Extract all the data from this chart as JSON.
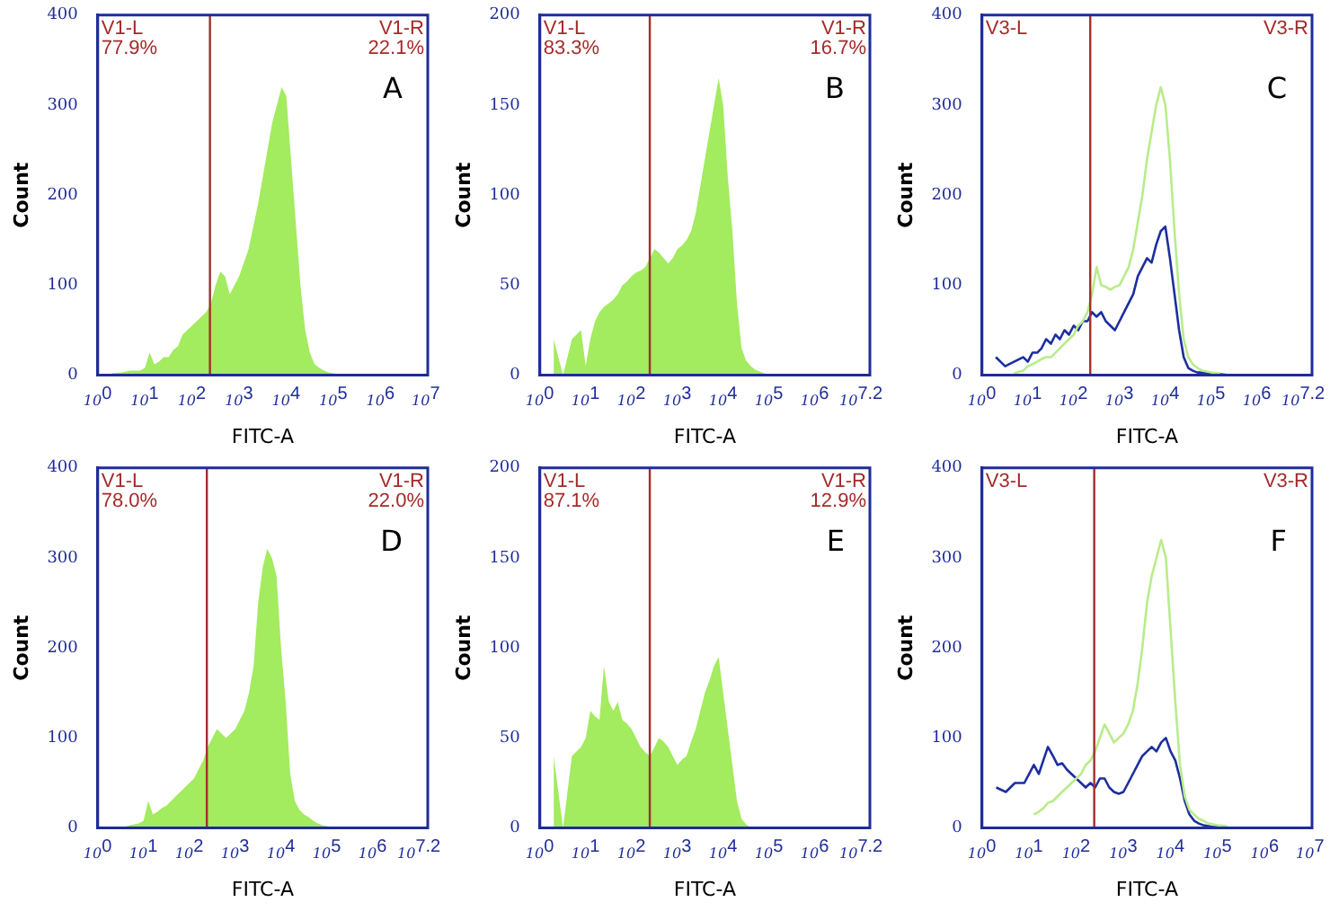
{
  "chart_data": [
    {
      "type": "area",
      "title": "A",
      "xlabel": "FITC-A",
      "ylabel": "Count",
      "log": "x",
      "grid": false,
      "legend": false,
      "annotations": [
        "V1-L",
        "V1-R",
        "77.9%",
        "22.1%"
      ],
      "ref_lines": [
        {
          "axis": "x",
          "value": 240,
          "color": "#a0302a"
        }
      ],
      "xlim": [
        1,
        10000000
      ],
      "xticks": [
        {
          "value": 1,
          "label": "10$^{0}$"
        },
        {
          "value": 10,
          "label": "10$^{1}$"
        },
        {
          "value": 100,
          "label": "10$^{2}$"
        },
        {
          "value": 1000,
          "label": "10$^{3}$"
        },
        {
          "value": 10000,
          "label": "10$^{4}$"
        },
        {
          "value": 100000,
          "label": "10$^{5}$"
        },
        {
          "value": 1000000,
          "label": "10$^{6}$"
        },
        {
          "value": 10000000,
          "label": "10$^{7}$"
        }
      ],
      "ylim": [
        0,
        400
      ],
      "yticks": [
        0,
        100,
        200,
        300,
        400
      ],
      "x": [
        2,
        3.2,
        5,
        7.9,
        10,
        12.6,
        16,
        20,
        25,
        32,
        40,
        50,
        63,
        79,
        100,
        126,
        158,
        200,
        251,
        316,
        398,
        501,
        631,
        794,
        1000,
        1259,
        1585,
        1995,
        2512,
        3162,
        3981,
        5012,
        6310,
        7943,
        10000,
        12589,
        15849,
        19953,
        25119,
        31623,
        39811,
        50119,
        63096,
        79433,
        100000,
        158489,
        251189,
        398107
      ],
      "color": "#a3eb5f",
      "values": [
        2,
        3,
        5,
        5,
        8,
        25,
        12,
        15,
        20,
        20,
        28,
        32,
        45,
        50,
        55,
        60,
        65,
        70,
        80,
        100,
        115,
        110,
        90,
        100,
        110,
        125,
        140,
        165,
        190,
        220,
        250,
        280,
        300,
        320,
        310,
        240,
        170,
        100,
        50,
        25,
        12,
        8,
        5,
        3,
        2,
        0,
        0,
        0
      ]
    },
    {
      "type": "area",
      "title": "B",
      "xlabel": "FITC-A",
      "ylabel": "Count",
      "log": "x",
      "grid": false,
      "legend": false,
      "annotations": [
        "V1-L",
        "V1-R",
        "83.3%",
        "16.7%"
      ],
      "ref_lines": [
        {
          "axis": "x",
          "value": 250,
          "color": "#a0302a"
        }
      ],
      "xlim": [
        1,
        15848932
      ],
      "xticks": [
        {
          "value": 1,
          "label": "10$^{0}$"
        },
        {
          "value": 10,
          "label": "10$^{1}$"
        },
        {
          "value": 100,
          "label": "10$^{2}$"
        },
        {
          "value": 1000,
          "label": "10$^{3}$"
        },
        {
          "value": 10000,
          "label": "10$^{4}$"
        },
        {
          "value": 100000,
          "label": "10$^{5}$"
        },
        {
          "value": 1000000,
          "label": "10$^{6}$"
        },
        {
          "value": 15848932,
          "label": "10$^{7.2}$"
        }
      ],
      "ylim": [
        0,
        200
      ],
      "yticks": [
        0,
        50,
        100,
        150,
        200
      ],
      "x": [
        2,
        3.2,
        5,
        7.9,
        10,
        12.6,
        16,
        20,
        25,
        32,
        40,
        50,
        63,
        79,
        100,
        126,
        158,
        200,
        251,
        316,
        398,
        501,
        631,
        794,
        1000,
        1259,
        1585,
        1995,
        2512,
        3162,
        3981,
        5012,
        6310,
        7943,
        10000,
        12589,
        15849,
        19953,
        25119,
        31623,
        39811,
        50119,
        63096,
        79433,
        100000,
        158489,
        251189,
        398107
      ],
      "color": "#a3eb5f",
      "values": [
        20,
        0,
        20,
        25,
        5,
        20,
        30,
        35,
        38,
        40,
        42,
        45,
        50,
        52,
        55,
        57,
        58,
        60,
        65,
        70,
        68,
        65,
        62,
        65,
        70,
        72,
        75,
        80,
        90,
        105,
        120,
        135,
        150,
        165,
        150,
        110,
        80,
        40,
        15,
        8,
        5,
        3,
        2,
        1,
        0,
        0,
        0,
        0
      ]
    },
    {
      "type": "line",
      "title": "C",
      "xlabel": "FITC-A",
      "ylabel": "Count",
      "log": "x",
      "grid": false,
      "legend": false,
      "annotations": [
        "V3-L",
        "V3-R"
      ],
      "ref_lines": [
        {
          "axis": "x",
          "value": 230,
          "color": "#a0302a"
        }
      ],
      "xlim": [
        1,
        15848932
      ],
      "xticks": [
        {
          "value": 1,
          "label": "10$^{0}$"
        },
        {
          "value": 10,
          "label": "10$^{1}$"
        },
        {
          "value": 100,
          "label": "10$^{2}$"
        },
        {
          "value": 1000,
          "label": "10$^{3}$"
        },
        {
          "value": 10000,
          "label": "10$^{4}$"
        },
        {
          "value": 100000,
          "label": "10$^{5}$"
        },
        {
          "value": 1000000,
          "label": "10$^{6}$"
        },
        {
          "value": 15848932,
          "label": "10$^{7.2}$"
        }
      ],
      "ylim": [
        0,
        400
      ],
      "yticks": [
        0,
        100,
        200,
        300,
        400
      ],
      "x": [
        2,
        3.2,
        5,
        7.9,
        10,
        12.6,
        16,
        20,
        25,
        32,
        40,
        50,
        63,
        79,
        100,
        126,
        158,
        200,
        251,
        316,
        398,
        501,
        631,
        794,
        1000,
        1259,
        1585,
        1995,
        2512,
        3162,
        3981,
        5012,
        6310,
        7943,
        10000,
        12589,
        15849,
        19953,
        25119,
        31623,
        39811,
        50119,
        63096,
        79433,
        100000,
        158489,
        251189,
        398107
      ],
      "series": [
        {
          "color": "#b8ec8a",
          "values": [
            null,
            null,
            2,
            5,
            10,
            12,
            15,
            18,
            20,
            20,
            25,
            30,
            35,
            40,
            45,
            55,
            60,
            70,
            90,
            120,
            100,
            98,
            95,
            98,
            100,
            110,
            120,
            140,
            170,
            200,
            240,
            270,
            300,
            320,
            300,
            240,
            160,
            90,
            40,
            20,
            12,
            8,
            5,
            4,
            3,
            2,
            null,
            null
          ]
        },
        {
          "color": "#1c2ea0",
          "values": [
            20,
            10,
            15,
            20,
            15,
            25,
            25,
            30,
            40,
            35,
            45,
            40,
            50,
            45,
            55,
            50,
            60,
            60,
            70,
            65,
            70,
            60,
            55,
            50,
            60,
            70,
            80,
            90,
            110,
            120,
            130,
            125,
            145,
            160,
            165,
            130,
            90,
            50,
            20,
            8,
            5,
            3,
            3,
            2,
            2,
            1,
            0,
            0
          ]
        }
      ]
    },
    {
      "type": "area",
      "title": "D",
      "xlabel": "FITC-A",
      "ylabel": "Count",
      "log": "x",
      "grid": false,
      "legend": false,
      "annotations": [
        "V1-L",
        "V1-R",
        "78.0%",
        "22.0%"
      ],
      "ref_lines": [
        {
          "axis": "x",
          "value": 240,
          "color": "#a0302a"
        }
      ],
      "xlim": [
        1,
        15848932
      ],
      "xticks": [
        {
          "value": 1,
          "label": "10$^{0}$"
        },
        {
          "value": 10,
          "label": "10$^{1}$"
        },
        {
          "value": 100,
          "label": "10$^{2}$"
        },
        {
          "value": 1000,
          "label": "10$^{3}$"
        },
        {
          "value": 10000,
          "label": "10$^{4}$"
        },
        {
          "value": 100000,
          "label": "10$^{5}$"
        },
        {
          "value": 1000000,
          "label": "10$^{6}$"
        },
        {
          "value": 15848932,
          "label": "10$^{7.2}$"
        }
      ],
      "ylim": [
        0,
        400
      ],
      "yticks": [
        0,
        100,
        200,
        300,
        400
      ],
      "x": [
        2,
        3.2,
        5,
        7.9,
        10,
        12.6,
        16,
        20,
        25,
        32,
        40,
        50,
        63,
        79,
        100,
        126,
        158,
        200,
        251,
        316,
        398,
        501,
        631,
        794,
        1000,
        1259,
        1585,
        1995,
        2512,
        3162,
        3981,
        5012,
        6310,
        7943,
        10000,
        12589,
        15849,
        19953,
        25119,
        31623,
        39811,
        50119,
        63096,
        79433,
        100000,
        158489,
        251189,
        398107
      ],
      "color": "#a3eb5f",
      "values": [
        0,
        0,
        3,
        5,
        8,
        30,
        15,
        18,
        22,
        25,
        30,
        35,
        40,
        45,
        50,
        55,
        65,
        75,
        90,
        100,
        110,
        105,
        100,
        105,
        110,
        120,
        130,
        150,
        180,
        250,
        290,
        310,
        300,
        280,
        200,
        140,
        60,
        30,
        20,
        15,
        12,
        8,
        5,
        3,
        2,
        0,
        0,
        0
      ]
    },
    {
      "type": "area",
      "title": "E",
      "xlabel": "FITC-A",
      "ylabel": "Count",
      "log": "x",
      "grid": false,
      "legend": false,
      "annotations": [
        "V1-L",
        "V1-R",
        "87.1%",
        "12.9%"
      ],
      "ref_lines": [
        {
          "axis": "x",
          "value": 250,
          "color": "#a0302a"
        }
      ],
      "xlim": [
        1,
        15848932
      ],
      "xticks": [
        {
          "value": 1,
          "label": "10$^{0}$"
        },
        {
          "value": 10,
          "label": "10$^{1}$"
        },
        {
          "value": 100,
          "label": "10$^{2}$"
        },
        {
          "value": 1000,
          "label": "10$^{3}$"
        },
        {
          "value": 10000,
          "label": "10$^{4}$"
        },
        {
          "value": 100000,
          "label": "10$^{5}$"
        },
        {
          "value": 1000000,
          "label": "10$^{6}$"
        },
        {
          "value": 15848932,
          "label": "10$^{7.2}$"
        }
      ],
      "ylim": [
        0,
        200
      ],
      "yticks": [
        0,
        50,
        100,
        150,
        200
      ],
      "x": [
        2,
        3.2,
        5,
        7.9,
        10,
        12.6,
        16,
        20,
        25,
        32,
        40,
        50,
        63,
        79,
        100,
        126,
        158,
        200,
        251,
        316,
        398,
        501,
        631,
        794,
        1000,
        1259,
        1585,
        1995,
        2512,
        3162,
        3981,
        5012,
        6310,
        7943,
        10000,
        12589,
        15849,
        19953,
        25119,
        31623,
        39811,
        50119,
        63096,
        79433,
        100000,
        158489,
        251189,
        398107
      ],
      "color": "#a3eb5f",
      "values": [
        40,
        0,
        40,
        45,
        50,
        65,
        62,
        60,
        90,
        70,
        65,
        70,
        60,
        58,
        55,
        50,
        45,
        42,
        40,
        45,
        50,
        48,
        45,
        40,
        35,
        38,
        40,
        48,
        55,
        65,
        75,
        82,
        90,
        95,
        75,
        55,
        35,
        15,
        5,
        2,
        0,
        0,
        0,
        0,
        0,
        0,
        0,
        0
      ]
    },
    {
      "type": "line",
      "title": "F",
      "xlabel": "FITC-A",
      "ylabel": "Count",
      "log": "x",
      "grid": false,
      "legend": false,
      "annotations": [
        "V3-L",
        "V3-R"
      ],
      "ref_lines": [
        {
          "axis": "x",
          "value": 240,
          "color": "#a0302a"
        }
      ],
      "xlim": [
        1,
        10000000
      ],
      "xticks": [
        {
          "value": 1,
          "label": "10$^{0}$"
        },
        {
          "value": 10,
          "label": "10$^{1}$"
        },
        {
          "value": 100,
          "label": "10$^{2}$"
        },
        {
          "value": 1000,
          "label": "10$^{3}$"
        },
        {
          "value": 10000,
          "label": "10$^{4}$"
        },
        {
          "value": 100000,
          "label": "10$^{5}$"
        },
        {
          "value": 1000000,
          "label": "10$^{6}$"
        },
        {
          "value": 10000000,
          "label": "10$^{7}$"
        }
      ],
      "ylim": [
        0,
        400
      ],
      "yticks": [
        0,
        100,
        200,
        300,
        400
      ],
      "x": [
        2,
        3.2,
        5,
        7.9,
        10,
        12.6,
        16,
        20,
        25,
        32,
        40,
        50,
        63,
        79,
        100,
        126,
        158,
        200,
        251,
        316,
        398,
        501,
        631,
        794,
        1000,
        1259,
        1585,
        1995,
        2512,
        3162,
        3981,
        5012,
        6310,
        7943,
        10000,
        12589,
        15849,
        19953,
        25119,
        31623,
        39811,
        50119,
        63096,
        79433,
        100000,
        158489,
        251189,
        398107
      ],
      "series": [
        {
          "color": "#b8ec8a",
          "values": [
            null,
            null,
            null,
            null,
            null,
            15,
            18,
            22,
            28,
            30,
            35,
            40,
            45,
            50,
            55,
            60,
            70,
            75,
            85,
            100,
            115,
            105,
            95,
            100,
            105,
            115,
            130,
            160,
            200,
            250,
            280,
            300,
            320,
            300,
            220,
            140,
            70,
            35,
            20,
            15,
            10,
            8,
            5,
            4,
            3,
            2,
            null,
            null
          ]
        },
        {
          "color": "#1c2ea0",
          "values": [
            45,
            40,
            50,
            50,
            60,
            70,
            60,
            75,
            90,
            80,
            70,
            72,
            65,
            60,
            55,
            50,
            45,
            50,
            45,
            55,
            55,
            45,
            40,
            38,
            40,
            50,
            60,
            70,
            80,
            85,
            90,
            85,
            95,
            100,
            85,
            75,
            55,
            30,
            15,
            8,
            5,
            3,
            2,
            1,
            1,
            0,
            0,
            0
          ]
        }
      ]
    }
  ]
}
